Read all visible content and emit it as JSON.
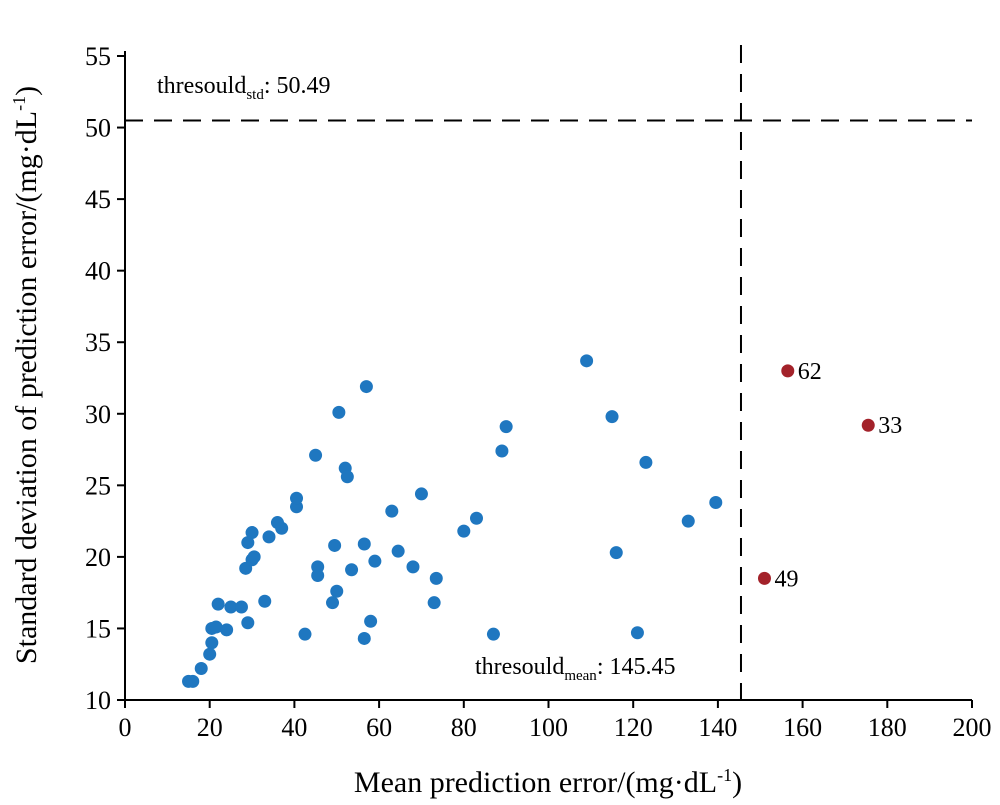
{
  "chart_data": {
    "type": "scatter",
    "xlabel": {
      "main": "Mean prediction error/(mg·dL",
      "sup": "-1",
      "close": ")"
    },
    "ylabel": {
      "main": "Standard deviation of prediction error/(mg·dL",
      "sup": "-1",
      "close": ")"
    },
    "xlim": [
      0,
      200
    ],
    "ylim": [
      10,
      55
    ],
    "xticks": [
      "0",
      "20",
      "40",
      "60",
      "80",
      "100",
      "120",
      "140",
      "160",
      "180",
      "200"
    ],
    "yticks": [
      "10",
      "15",
      "20",
      "25",
      "30",
      "35",
      "40",
      "45",
      "50",
      "55"
    ],
    "colors": {
      "normal": "#1f77c0",
      "outlier": "#a3222a",
      "axis": "#000000"
    },
    "thresholds": {
      "mean": {
        "value": 145.45,
        "label_base": "thresould",
        "label_sub": "mean",
        "label_tail": ": 145.45"
      },
      "std": {
        "value": 50.49,
        "label_base": "thresould",
        "label_sub": "std",
        "label_tail": ": 50.49"
      }
    },
    "series": [
      {
        "role": "normal",
        "points": [
          [
            15,
            11.3
          ],
          [
            16,
            11.3
          ],
          [
            18,
            12.2
          ],
          [
            20,
            13.2
          ],
          [
            20.5,
            14
          ],
          [
            20.5,
            15
          ],
          [
            21.5,
            15.1
          ],
          [
            22,
            16.7
          ],
          [
            24,
            14.9
          ],
          [
            25,
            16.5
          ],
          [
            27.5,
            16.5
          ],
          [
            28.5,
            19.2
          ],
          [
            29,
            15.4
          ],
          [
            29,
            21
          ],
          [
            30,
            19.8
          ],
          [
            30,
            21.7
          ],
          [
            30.5,
            20
          ],
          [
            33,
            16.9
          ],
          [
            34,
            21.4
          ],
          [
            36,
            22.4
          ],
          [
            37,
            22
          ],
          [
            40.5,
            23.5
          ],
          [
            40.5,
            24.1
          ],
          [
            42.5,
            14.6
          ],
          [
            45,
            27.1
          ],
          [
            45.5,
            19.3
          ],
          [
            45.5,
            18.7
          ],
          [
            49,
            16.8
          ],
          [
            49.5,
            20.8
          ],
          [
            50,
            17.6
          ],
          [
            50.5,
            30.1
          ],
          [
            52,
            26.2
          ],
          [
            52.5,
            25.6
          ],
          [
            53.5,
            19.1
          ],
          [
            56.5,
            20.9
          ],
          [
            56.5,
            14.3
          ],
          [
            57,
            31.9
          ],
          [
            58,
            15.5
          ],
          [
            59,
            19.7
          ],
          [
            63,
            23.2
          ],
          [
            64.5,
            20.4
          ],
          [
            68,
            19.3
          ],
          [
            70,
            24.4
          ],
          [
            73,
            16.8
          ],
          [
            73.5,
            18.5
          ],
          [
            80,
            21.8
          ],
          [
            83,
            22.7
          ],
          [
            87,
            14.6
          ],
          [
            89,
            27.4
          ],
          [
            90,
            29.1
          ],
          [
            109,
            33.7
          ],
          [
            115,
            29.8
          ],
          [
            116,
            20.3
          ],
          [
            121,
            14.7
          ],
          [
            123,
            26.6
          ],
          [
            133,
            22.5
          ],
          [
            139.5,
            23.8
          ]
        ]
      },
      {
        "role": "outlier",
        "points": [
          [
            156.5,
            33,
            "62"
          ],
          [
            175.5,
            29.2,
            "33"
          ],
          [
            151,
            18.5,
            "49"
          ]
        ]
      }
    ]
  }
}
